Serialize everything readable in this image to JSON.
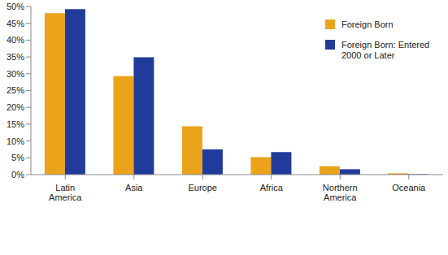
{
  "chart_data": {
    "type": "bar",
    "categories": [
      "Latin America",
      "Asia",
      "Europe",
      "Africa",
      "Northern America",
      "Oceania"
    ],
    "series": [
      {
        "name": "Foreign Born",
        "color": "#eca31c",
        "values": [
          48.0,
          29.3,
          14.4,
          5.2,
          2.5,
          0.4
        ]
      },
      {
        "name": "Foreign Born: Entered 2000 or Later",
        "color": "#213b9b",
        "values": [
          49.2,
          34.9,
          7.5,
          6.7,
          1.6,
          0.1
        ]
      }
    ],
    "ylim": [
      0,
      50
    ],
    "yticks": [
      {
        "value": 0,
        "label": "0%"
      },
      {
        "value": 5,
        "label": "5%"
      },
      {
        "value": 10,
        "label": "10%"
      },
      {
        "value": 15,
        "label": "15%"
      },
      {
        "value": 20,
        "label": "20%"
      },
      {
        "value": 25,
        "label": "25%"
      },
      {
        "value": 30,
        "label": "30%"
      },
      {
        "value": 35,
        "label": "35%"
      },
      {
        "value": 40,
        "label": "40%"
      },
      {
        "value": 45,
        "label": "45%"
      },
      {
        "value": 50,
        "label": "50%"
      }
    ],
    "grid": false,
    "legend": "top-right"
  }
}
